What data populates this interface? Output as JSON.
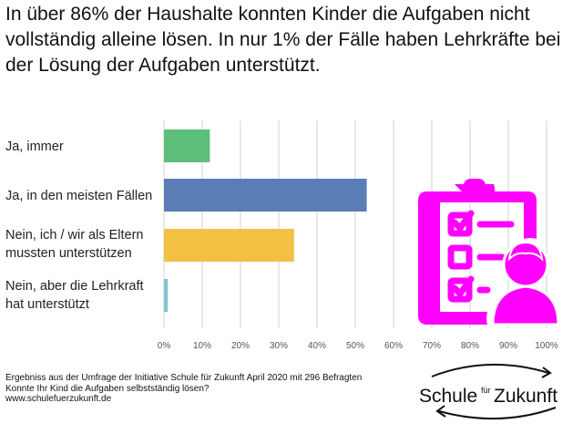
{
  "headline": {
    "line1": "In über 86% der Haushalte konnten Kinder die Aufgaben nicht",
    "line2": "vollständig alleine lösen. In nur 1% der Fälle haben Lehrkräfte bei",
    "line3": "der Lösung der Aufgaben unterstützt."
  },
  "labels": {
    "cat1": "Ja, immer",
    "cat2": "Ja, in den meisten Fällen",
    "cat3_line1": "Nein, ich / wir als Eltern",
    "cat3_line2": "mussten unterstützen",
    "cat4_line1": "Nein, aber die Lehrkraft",
    "cat4_line2": "hat unterstützt"
  },
  "chart_data": {
    "type": "bar",
    "orientation": "horizontal",
    "categories": [
      "Ja, immer",
      "Ja, in den meisten Fällen",
      "Nein, ich / wir als Eltern mussten unterstützen",
      "Nein, aber die Lehrkraft hat unterstützt"
    ],
    "values": [
      12,
      53,
      34,
      1
    ],
    "unit": "%",
    "colors": [
      "#5dbf7a",
      "#5b7db5",
      "#f2c144",
      "#7fc6cf"
    ],
    "xlim": [
      0,
      100
    ],
    "xticks": [
      "0%",
      "10%",
      "20%",
      "30%",
      "40%",
      "50%",
      "60%",
      "70%",
      "80%",
      "90%",
      "100%"
    ],
    "grid": true
  },
  "footer": {
    "line1": "Ergebniss aus der Umfrage der Initiative Schule für Zukunft  April 2020 mit 296 Befragten",
    "line2": "Konnte Ihr Kind die Aufgaben selbstständig lösen?",
    "line3": "www.schulefuerzukunft.de"
  },
  "logo": {
    "word_left": "Schule",
    "word_small": "für",
    "word_right": "Zukunft"
  },
  "icon": {
    "name": "clipboard-checklist-person-icon",
    "color": "#ff00ff"
  },
  "gridline_color": "#d0d0d0",
  "tick_color": "#555555"
}
